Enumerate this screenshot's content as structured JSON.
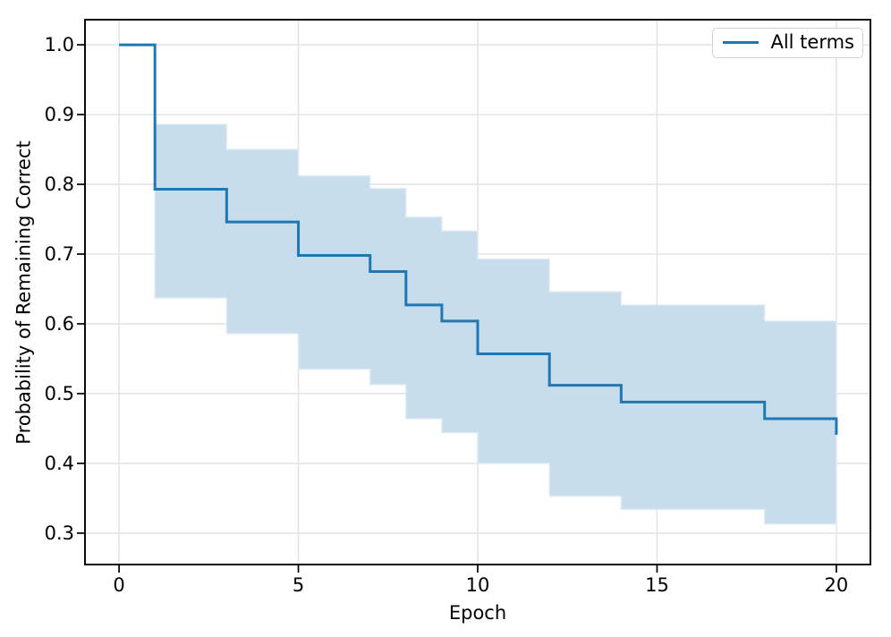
{
  "figure": {
    "background_color": "#ffffff"
  },
  "chart_data": {
    "type": "line",
    "subtype": "step-survival-curve",
    "title": "",
    "xlabel": "Epoch",
    "ylabel": "Probability of Remaining Correct",
    "x_ticks": [
      0,
      5,
      10,
      15,
      20
    ],
    "x_tick_labels": [
      "0",
      "5",
      "10",
      "15",
      "20"
    ],
    "y_ticks": [
      1.0,
      0.9,
      0.8,
      0.7,
      0.6,
      0.5,
      0.4,
      0.3
    ],
    "y_tick_labels": [
      "1.0",
      "0.9",
      "0.8",
      "0.7",
      "0.6",
      "0.5",
      "0.4",
      "0.3"
    ],
    "xlim": [
      -0.95,
      20.95
    ],
    "ylim": [
      0.255,
      1.036
    ],
    "grid": true,
    "grid_color": "#e5e5e5",
    "axis_color": "#000000",
    "legend": {
      "position": "upper right",
      "entries": [
        {
          "label": "All terms",
          "color": "#1f77b4"
        }
      ]
    },
    "series": [
      {
        "name": "All terms",
        "line_color": "#1f77b4",
        "band_color": "#c7ddec",
        "band_edge_color": "#dfebf4",
        "steps": [
          {
            "from": 0,
            "to": 1,
            "survival": 1.0,
            "ci_upper": null,
            "ci_lower": null
          },
          {
            "from": 1,
            "to": 3,
            "survival": 0.793,
            "ci_upper": 0.886,
            "ci_lower": 0.637
          },
          {
            "from": 3,
            "to": 5,
            "survival": 0.746,
            "ci_upper": 0.85,
            "ci_lower": 0.586
          },
          {
            "from": 5,
            "to": 7,
            "survival": 0.698,
            "ci_upper": 0.812,
            "ci_lower": 0.535
          },
          {
            "from": 7,
            "to": 8,
            "survival": 0.675,
            "ci_upper": 0.794,
            "ci_lower": 0.513
          },
          {
            "from": 8,
            "to": 9,
            "survival": 0.627,
            "ci_upper": 0.753,
            "ci_lower": 0.464
          },
          {
            "from": 9,
            "to": 10,
            "survival": 0.604,
            "ci_upper": 0.733,
            "ci_lower": 0.444
          },
          {
            "from": 10,
            "to": 12,
            "survival": 0.557,
            "ci_upper": 0.693,
            "ci_lower": 0.4
          },
          {
            "from": 12,
            "to": 14,
            "survival": 0.512,
            "ci_upper": 0.646,
            "ci_lower": 0.353
          },
          {
            "from": 14,
            "to": 18,
            "survival": 0.488,
            "ci_upper": 0.627,
            "ci_lower": 0.334
          },
          {
            "from": 18,
            "to": 20,
            "survival": 0.464,
            "ci_upper": 0.604,
            "ci_lower": 0.313
          }
        ],
        "final_drop": {
          "epoch": 20,
          "survival": 0.441,
          "ci_lower": 0.29
        }
      }
    ]
  }
}
